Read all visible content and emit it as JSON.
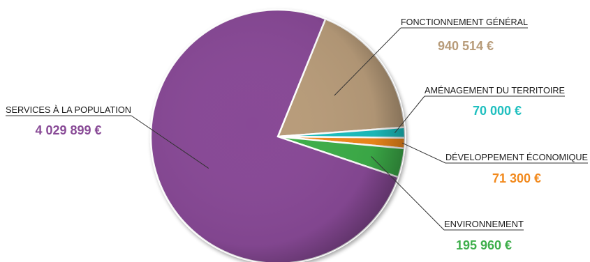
{
  "chart_data": {
    "type": "pie",
    "title": "",
    "currency": "€",
    "slices": [
      {
        "name": "FONCTIONNEMENT GÉNÉRAL",
        "value": 940514,
        "display": "940 514 €",
        "color": "#B89C7A"
      },
      {
        "name": "AMÉNAGEMENT DU TERRITOIRE",
        "value": 70000,
        "display": "70 000 €",
        "color": "#1FBFBF"
      },
      {
        "name": "DÉVELOPPEMENT ÉCONOMIQUE",
        "value": 71300,
        "display": "71 300 €",
        "color": "#F28A1E"
      },
      {
        "name": "ENVIRONNEMENT",
        "value": 195960,
        "display": "195 960 €",
        "color": "#3DAE4A"
      },
      {
        "name": "SERVICES À LA POPULATION",
        "value": 4029899,
        "display": "4 029 899 €",
        "color": "#884A96"
      }
    ],
    "legend": "none"
  }
}
